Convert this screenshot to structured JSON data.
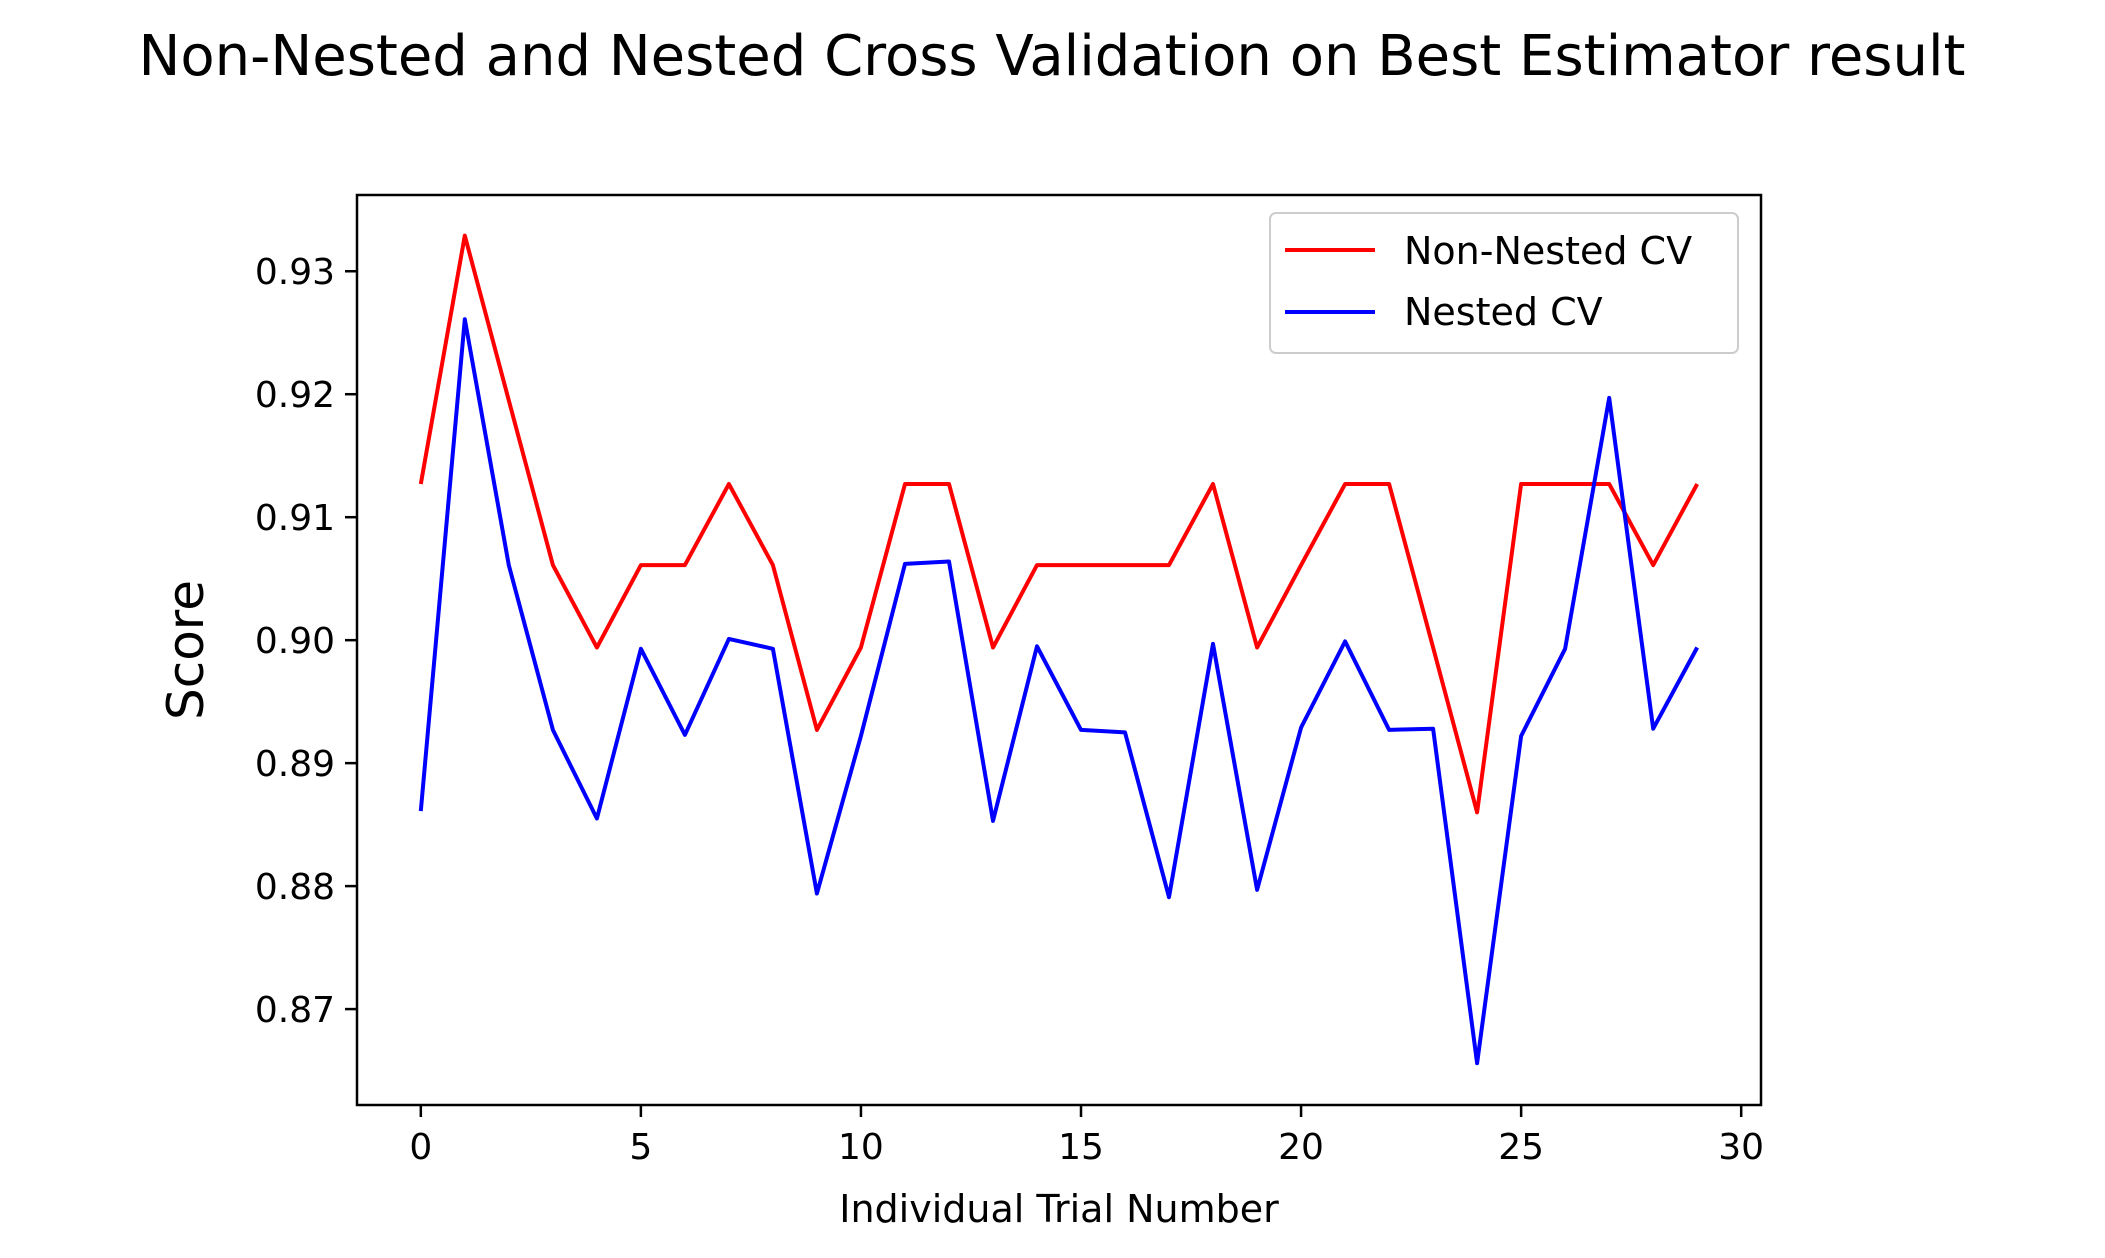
{
  "chart_data": {
    "type": "line",
    "title": "Non-Nested and Nested Cross Validation on Best Estimator result",
    "xlabel": "Individual Trial Number",
    "ylabel": "Score",
    "xlim": [
      -1.45,
      30.45
    ],
    "ylim": [
      0.8622,
      0.9362
    ],
    "xticks": [
      0,
      5,
      10,
      15,
      20,
      25,
      30
    ],
    "yticks": [
      0.87,
      0.88,
      0.89,
      0.9,
      0.91,
      0.92,
      0.93
    ],
    "ytick_labels": [
      "0.87",
      "0.88",
      "0.89",
      "0.90",
      "0.91",
      "0.92",
      "0.93"
    ],
    "grid": false,
    "legend": "top-right",
    "x": [
      0,
      1,
      2,
      3,
      4,
      5,
      6,
      7,
      8,
      9,
      10,
      11,
      12,
      13,
      14,
      15,
      16,
      17,
      18,
      19,
      20,
      21,
      22,
      23,
      24,
      25,
      26,
      27,
      28,
      29
    ],
    "series": [
      {
        "name": "Non-Nested CV",
        "color": "#ff0000",
        "values": [
          0.9127,
          0.9329,
          0.9195,
          0.9061,
          0.8994,
          0.9061,
          0.9061,
          0.9127,
          0.9061,
          0.8927,
          0.8994,
          0.9127,
          0.9127,
          0.8994,
          0.9061,
          0.9061,
          0.9061,
          0.9061,
          0.9127,
          0.8994,
          0.9061,
          0.9127,
          0.9127,
          0.8994,
          0.886,
          0.9127,
          0.9127,
          0.9127,
          0.9061,
          0.9127
        ]
      },
      {
        "name": "Nested CV",
        "color": "#0000ff",
        "values": [
          0.8861,
          0.9261,
          0.9061,
          0.8927,
          0.8855,
          0.8993,
          0.8923,
          0.9001,
          0.8993,
          0.8794,
          0.8922,
          0.9062,
          0.9064,
          0.8853,
          0.8995,
          0.8927,
          0.8925,
          0.8791,
          0.8997,
          0.8797,
          0.8929,
          0.8999,
          0.8927,
          0.8928,
          0.8656,
          0.8922,
          0.8993,
          0.9197,
          0.8928,
          0.8994
        ]
      }
    ]
  }
}
